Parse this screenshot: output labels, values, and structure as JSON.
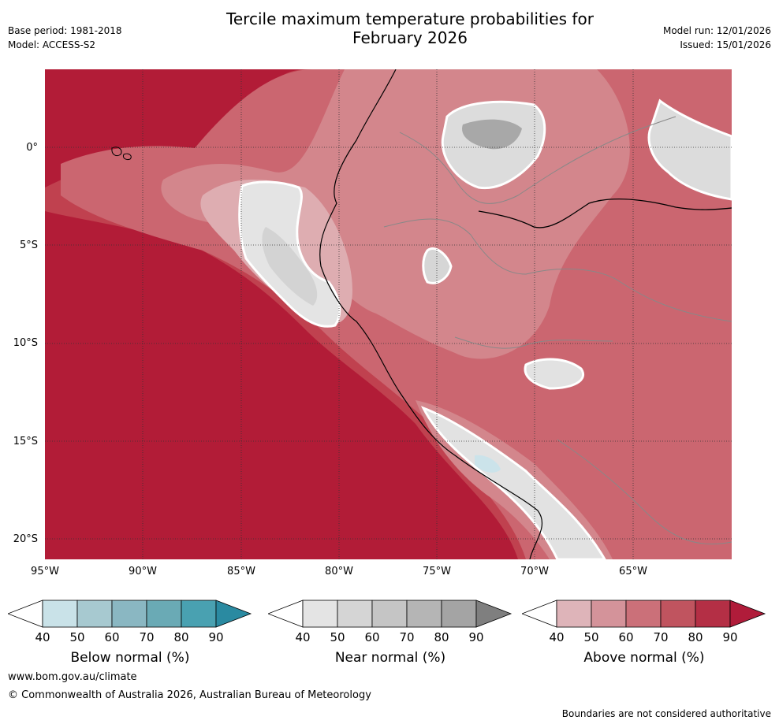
{
  "header": {
    "title_line1": "Tercile maximum temperature probabilities for",
    "title_line2": "February 2026",
    "base_period": "Base period: 1981-2018",
    "model": "Model: ACCESS-S2",
    "model_run": "Model run: 12/01/2026",
    "issued": "Issued: 15/01/2026"
  },
  "map": {
    "lat_labels": [
      "0°",
      "5°S",
      "10°S",
      "15°S",
      "20°S"
    ],
    "lon_labels": [
      "95°W",
      "90°W",
      "85°W",
      "80°W",
      "75°W",
      "70°W",
      "65°W"
    ],
    "colors": {
      "ocean_high": "#b21c37",
      "above_80": "#c0414f",
      "above_70": "#cb6670",
      "above_60": "#d3868c",
      "above_50": "#deadb1",
      "near_normal_50": "#e4e4e4",
      "near_normal_60": "#d6d6d6",
      "near_normal_70": "#c6c6c6",
      "near_normal_80": "#a8a8a8",
      "below_light": "#cbe3ea",
      "coast": "#000000",
      "border": "#888888",
      "grid": "#333333"
    }
  },
  "colorbars": [
    {
      "title": "Below normal (%)",
      "ticks": [
        "40",
        "50",
        "60",
        "70",
        "80",
        "90"
      ],
      "colors": [
        "#ffffff",
        "#c9e2e8",
        "#a7c9d0",
        "#8ab7c2",
        "#6aaab5",
        "#49a1b1",
        "#2a8aa1"
      ]
    },
    {
      "title": "Near normal (%)",
      "ticks": [
        "40",
        "50",
        "60",
        "70",
        "80",
        "90"
      ],
      "colors": [
        "#ffffff",
        "#e4e4e4",
        "#d5d5d5",
        "#c5c5c5",
        "#b5b5b5",
        "#a4a4a4",
        "#7f7f7f"
      ]
    },
    {
      "title": "Above normal (%)",
      "ticks": [
        "40",
        "50",
        "60",
        "70",
        "80",
        "90"
      ],
      "colors": [
        "#ffffff",
        "#deb4b9",
        "#d4939a",
        "#cb7079",
        "#c0545f",
        "#b42f45",
        "#b01c3a"
      ]
    }
  ],
  "footer": {
    "website": "www.bom.gov.au/climate",
    "copyright": "© Commonwealth of Australia 2026, Australian Bureau of Meteorology",
    "disclaimer": "Boundaries are not considered authoritative"
  }
}
